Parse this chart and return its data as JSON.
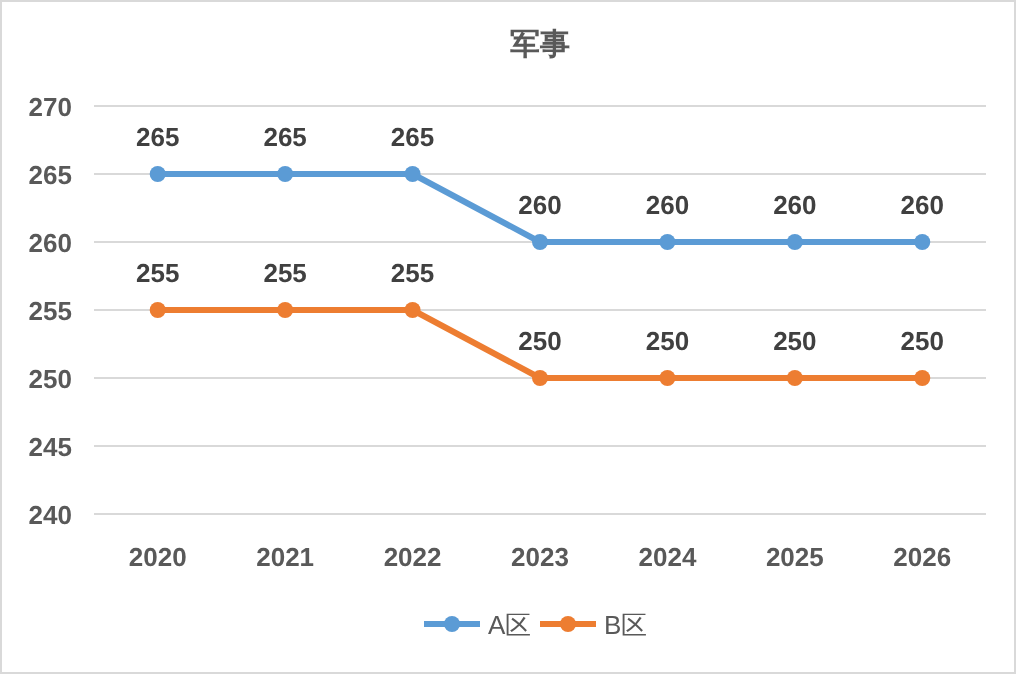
{
  "chart_data": {
    "type": "line",
    "title": "军事",
    "categories": [
      "2020",
      "2021",
      "2022",
      "2023",
      "2024",
      "2025",
      "2026"
    ],
    "series": [
      {
        "name": "A区",
        "color": "#5b9bd5",
        "values": [
          265,
          265,
          265,
          260,
          260,
          260,
          260
        ]
      },
      {
        "name": "B区",
        "color": "#ed7d31",
        "values": [
          255,
          255,
          255,
          250,
          250,
          250,
          250
        ]
      }
    ],
    "ylim": [
      240,
      270
    ],
    "yticks": [
      240,
      245,
      250,
      255,
      260,
      265,
      270
    ],
    "grid": "y",
    "legend": "bottom",
    "marker": "circle",
    "line_style": "solid",
    "data_labels": true
  }
}
